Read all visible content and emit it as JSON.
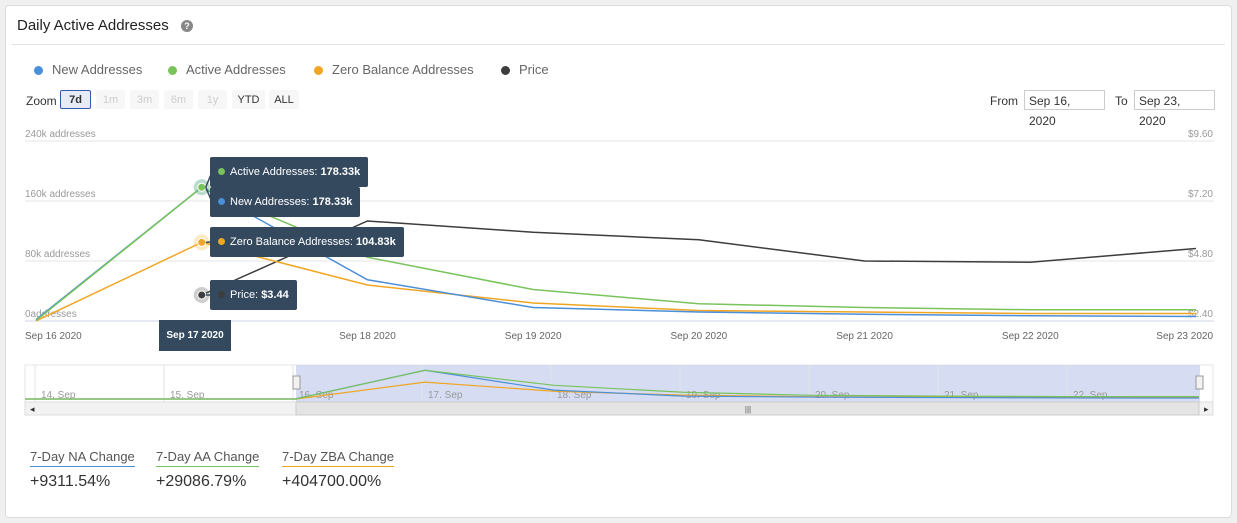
{
  "header": {
    "title": "Daily Active Addresses",
    "help_icon": "?"
  },
  "legend": [
    {
      "name": "New Addresses",
      "color": "#4a8fd9"
    },
    {
      "name": "Active Addresses",
      "color": "#79c35c"
    },
    {
      "name": "Zero Balance Addresses",
      "color": "#f0a623"
    },
    {
      "name": "Price",
      "color": "#3d3d3d"
    }
  ],
  "zoom": {
    "label": "Zoom",
    "buttons": [
      "7d",
      "1m",
      "3m",
      "6m",
      "1y",
      "YTD",
      "ALL"
    ],
    "active": "7d"
  },
  "range": {
    "from_label": "From",
    "from": "Sep 16, 2020",
    "to_label": "To",
    "to": "Sep 23, 2020"
  },
  "chart_data": {
    "type": "line",
    "x": [
      "Sep 16 2020",
      "Sep 17 2020",
      "Sep 18 2020",
      "Sep 19 2020",
      "Sep 20 2020",
      "Sep 21 2020",
      "Sep 22 2020",
      "Sep 23 2020"
    ],
    "y_left_ticks": [
      "0addresses",
      "80k addresses",
      "160k addresses",
      "240k addresses"
    ],
    "y_left_range": [
      0,
      240000
    ],
    "y_right_ticks": [
      "$2.40",
      "$4.80",
      "$7.20",
      "$9.60"
    ],
    "y_right_range": [
      2.4,
      9.6
    ],
    "series": [
      {
        "name": "New Addresses",
        "axis": "left",
        "color": "#4a8fd9",
        "values": [
          1900,
          178330,
          55000,
          18000,
          12000,
          9000,
          7000,
          6000
        ]
      },
      {
        "name": "Active Addresses",
        "axis": "left",
        "color": "#79c35c",
        "values": [
          600,
          178330,
          85000,
          42000,
          23000,
          18000,
          15000,
          15000
        ]
      },
      {
        "name": "Zero Balance Addresses",
        "axis": "left",
        "color": "#f0a623",
        "values": [
          30,
          104830,
          48000,
          24000,
          14000,
          12000,
          10000,
          10000
        ]
      },
      {
        "name": "Price",
        "axis": "right",
        "color": "#3d3d3d",
        "values": [
          null,
          3.44,
          6.4,
          5.95,
          5.65,
          4.8,
          4.75,
          5.3
        ]
      }
    ],
    "tooltip": {
      "date": "Sep 17 2020",
      "rows": [
        {
          "label": "Active Addresses:",
          "value": "178.33k",
          "color": "#79c35c"
        },
        {
          "label": "New Addresses:",
          "value": "178.33k",
          "color": "#4a8fd9"
        },
        {
          "label": "Zero Balance Addresses:",
          "value": "104.83k",
          "color": "#f0a623"
        },
        {
          "label": "Price:",
          "value": "$3.44",
          "color": "#3d3d3d"
        }
      ]
    },
    "navigator_ticks": [
      "14. Sep",
      "15. Sep",
      "16. Sep",
      "17. Sep",
      "18. Sep",
      "19. Sep",
      "20. Sep",
      "21. Sep",
      "22. Sep"
    ],
    "grid": true
  },
  "stats": [
    {
      "label": "7-Day NA Change",
      "value": "+9311.54%",
      "color": "#4a8fd9"
    },
    {
      "label": "7-Day AA Change",
      "value": "+29086.79%",
      "color": "#79c35c"
    },
    {
      "label": "7-Day ZBA Change",
      "value": "+404700.00%",
      "color": "#f0a623"
    }
  ]
}
